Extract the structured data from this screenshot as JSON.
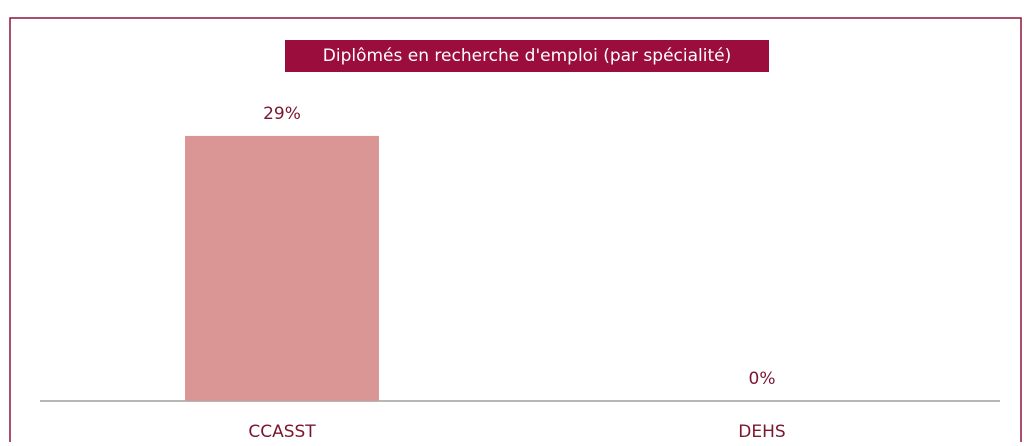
{
  "chart_data": {
    "type": "bar",
    "title": "Diplômés en recherche d'emploi (par spécialité)",
    "categories": [
      "CCASST",
      "DEHS"
    ],
    "values": [
      29,
      0
    ],
    "value_labels": [
      "29%",
      "0%"
    ],
    "color": "#d99694"
  }
}
